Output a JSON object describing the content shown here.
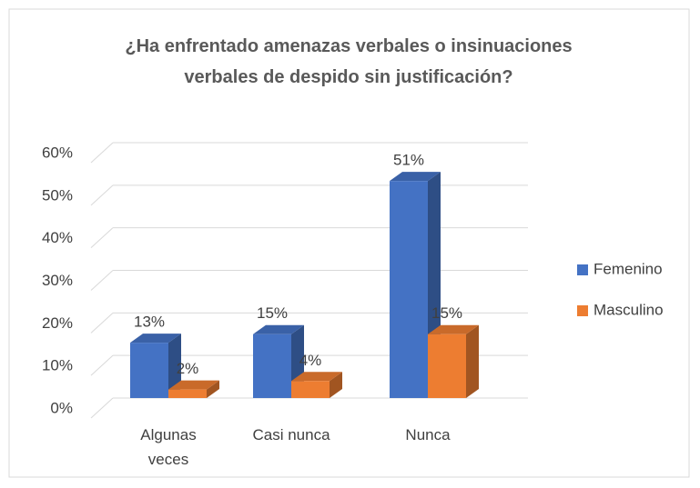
{
  "chart_data": {
    "type": "bar3d",
    "title": "¿Ha enfrentado amenazas verbales o insinuaciones verbales de despido sin justificación?",
    "categories": [
      "Algunas veces",
      "Casi nunca",
      "Nunca"
    ],
    "series": [
      {
        "name": "Femenino",
        "color": "#4472c4",
        "values": [
          13,
          15,
          51
        ],
        "value_labels": [
          "13%",
          "15%",
          "51%"
        ]
      },
      {
        "name": "Masculino",
        "color": "#ed7d31",
        "values": [
          2,
          4,
          15
        ],
        "value_labels": [
          "2%",
          "4%",
          "15%"
        ]
      }
    ],
    "ylim": [
      0,
      60
    ],
    "yticks": [
      {
        "value": 0,
        "label": "0%"
      },
      {
        "value": 10,
        "label": "10%"
      },
      {
        "value": 20,
        "label": "20%"
      },
      {
        "value": 30,
        "label": "30%"
      },
      {
        "value": 40,
        "label": "40%"
      },
      {
        "value": 50,
        "label": "50%"
      },
      {
        "value": 60,
        "label": "60%"
      }
    ],
    "grid": true,
    "legend": "right"
  }
}
